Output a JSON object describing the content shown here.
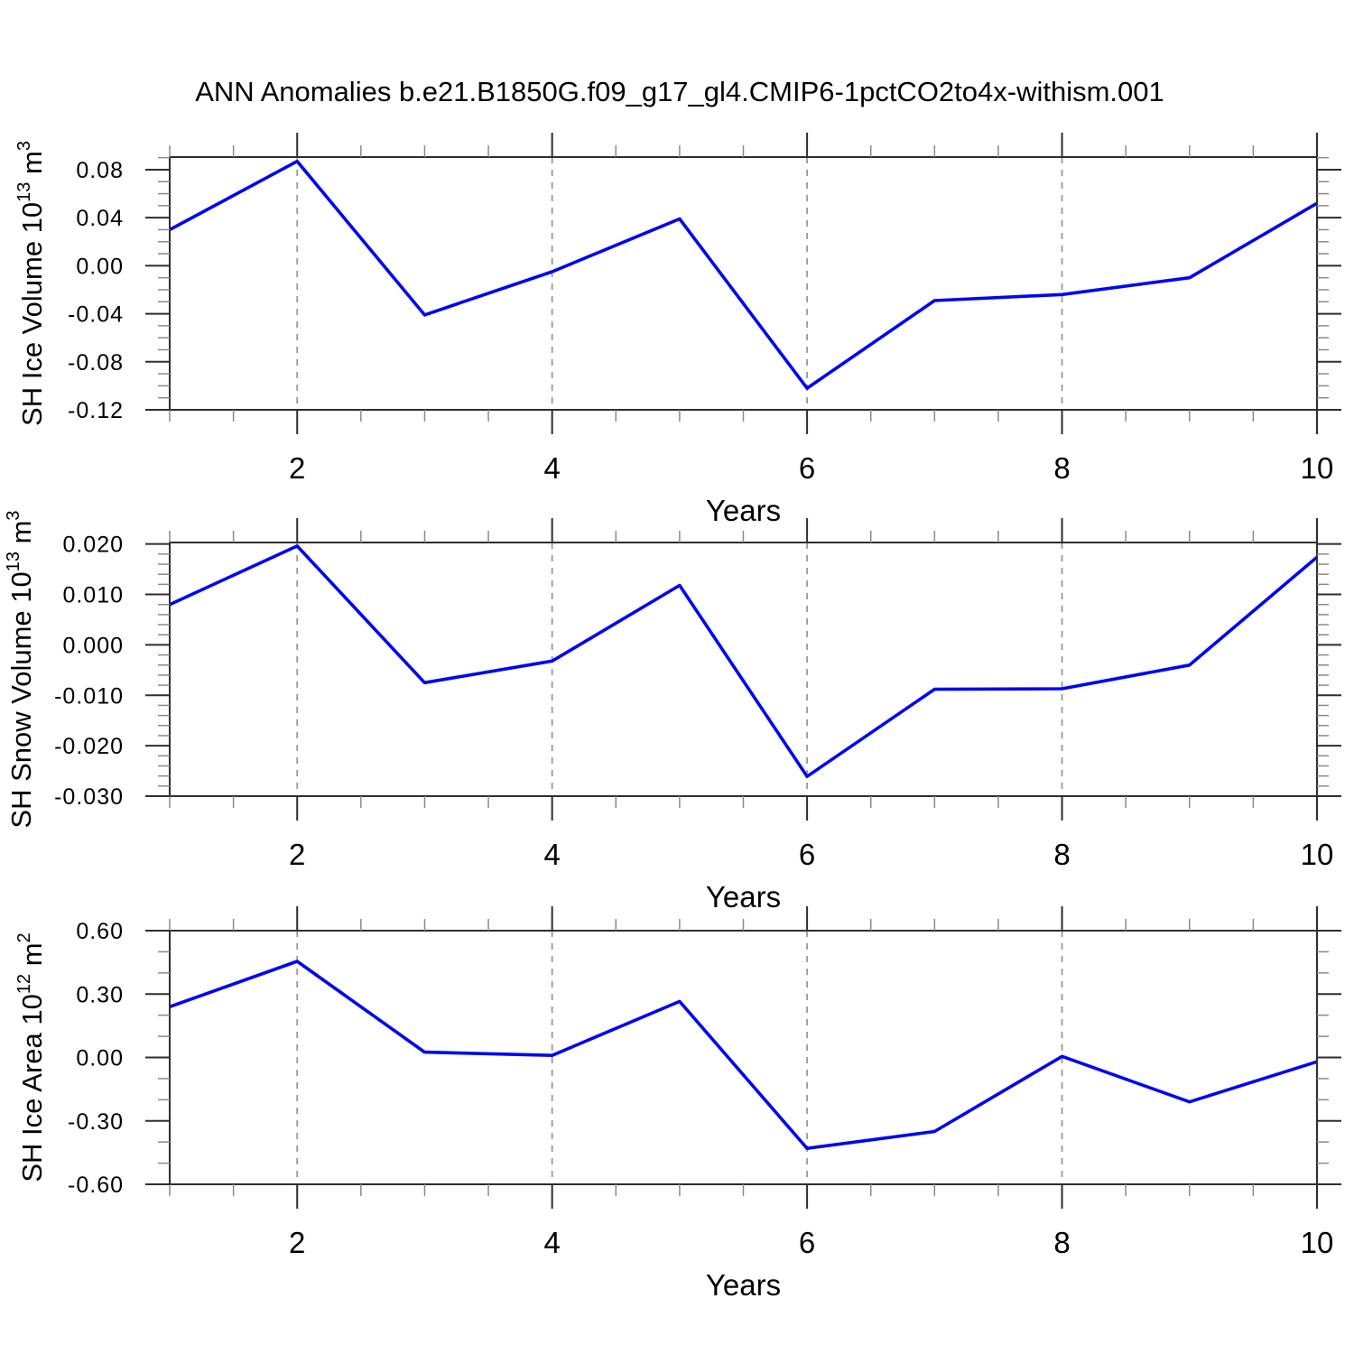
{
  "header": {
    "title": "ANN Anomalies b.e21.B1850G.f09_g17_gl4.CMIP6-1pctCO2to4x-withism.001"
  },
  "style": {
    "background": "#ffffff",
    "line_color": "#0006f0",
    "frame_color": "#2e2e2e",
    "major_tick_color": "#2e2e2e",
    "minor_tick_color": "#8a8a8a",
    "grid_color": "#999999",
    "text_color": "#000000"
  },
  "chart_data": [
    {
      "type": "line",
      "title": "",
      "ylabel": "SH Ice Volume 10^13 m^3",
      "ylabel_parts": [
        {
          "t": "SH Ice Volume 10"
        },
        {
          "t": "13",
          "sup": true
        },
        {
          "t": " m"
        },
        {
          "t": "3",
          "sup": true
        }
      ],
      "xlabel": "Years",
      "x": [
        1,
        2,
        3,
        4,
        5,
        6,
        7,
        8,
        9,
        10
      ],
      "values": [
        0.03,
        0.087,
        -0.041,
        -0.005,
        0.039,
        -0.102,
        -0.029,
        -0.024,
        -0.01,
        0.052
      ],
      "xlim": [
        1,
        10
      ],
      "ylim": [
        -0.12,
        0.0905
      ],
      "yticks": [
        {
          "v": 0.08,
          "label": "0.08"
        },
        {
          "v": 0.04,
          "label": "0.04"
        },
        {
          "v": 0.0,
          "label": "0.00"
        },
        {
          "v": -0.04,
          "label": "-0.04"
        },
        {
          "v": -0.08,
          "label": "-0.08"
        },
        {
          "v": -0.12,
          "label": "-0.12"
        }
      ],
      "y_minor_step": 0.01,
      "xticks": [
        {
          "v": 2,
          "label": "2"
        },
        {
          "v": 4,
          "label": "4"
        },
        {
          "v": 6,
          "label": "6"
        },
        {
          "v": 8,
          "label": "8"
        },
        {
          "v": 10,
          "label": "10"
        }
      ],
      "x_minor_step": 0.5,
      "gridlines_x": [
        2,
        4,
        6,
        8
      ],
      "grid": "vertical-dashed",
      "legend": "none"
    },
    {
      "type": "line",
      "title": "",
      "ylabel": "SH Snow Volume 10^13 m^3",
      "ylabel_parts": [
        {
          "t": "SH Snow Volume 10"
        },
        {
          "t": "13",
          "sup": true
        },
        {
          "t": " m"
        },
        {
          "t": "3",
          "sup": true
        }
      ],
      "xlabel": "Years",
      "x": [
        1,
        2,
        3,
        4,
        5,
        6,
        7,
        8,
        9,
        10
      ],
      "values": [
        0.008,
        0.0196,
        -0.0075,
        -0.0032,
        0.0118,
        -0.0261,
        -0.0088,
        -0.0087,
        -0.004,
        0.0174
      ],
      "xlim": [
        1,
        10
      ],
      "ylim": [
        -0.03,
        0.0203
      ],
      "yticks": [
        {
          "v": 0.02,
          "label": "0.020"
        },
        {
          "v": 0.01,
          "label": "0.010"
        },
        {
          "v": 0.0,
          "label": "0.000"
        },
        {
          "v": -0.01,
          "label": "-0.010"
        },
        {
          "v": -0.02,
          "label": "-0.020"
        },
        {
          "v": -0.03,
          "label": "-0.030"
        }
      ],
      "y_minor_step": 0.002,
      "xticks": [
        {
          "v": 2,
          "label": "2"
        },
        {
          "v": 4,
          "label": "4"
        },
        {
          "v": 6,
          "label": "6"
        },
        {
          "v": 8,
          "label": "8"
        },
        {
          "v": 10,
          "label": "10"
        }
      ],
      "x_minor_step": 0.5,
      "gridlines_x": [
        2,
        4,
        6,
        8
      ],
      "grid": "vertical-dashed",
      "legend": "none"
    },
    {
      "type": "line",
      "title": "",
      "ylabel": "SH Ice Area 10^12 m^2",
      "ylabel_parts": [
        {
          "t": "SH Ice Area 10"
        },
        {
          "t": "12",
          "sup": true
        },
        {
          "t": " m"
        },
        {
          "t": "2",
          "sup": true
        }
      ],
      "xlabel": "Years",
      "x": [
        1,
        2,
        3,
        4,
        5,
        6,
        7,
        8,
        9,
        10
      ],
      "values": [
        0.24,
        0.455,
        0.025,
        0.01,
        0.265,
        -0.43,
        -0.35,
        0.005,
        -0.21,
        -0.02
      ],
      "xlim": [
        1,
        10
      ],
      "ylim": [
        -0.6,
        0.6
      ],
      "yticks": [
        {
          "v": 0.6,
          "label": "0.60"
        },
        {
          "v": 0.3,
          "label": "0.30"
        },
        {
          "v": 0.0,
          "label": "0.00"
        },
        {
          "v": -0.3,
          "label": "-0.30"
        },
        {
          "v": -0.6,
          "label": "-0.60"
        }
      ],
      "y_minor_step": 0.1,
      "xticks": [
        {
          "v": 2,
          "label": "2"
        },
        {
          "v": 4,
          "label": "4"
        },
        {
          "v": 6,
          "label": "6"
        },
        {
          "v": 8,
          "label": "8"
        },
        {
          "v": 10,
          "label": "10"
        }
      ],
      "x_minor_step": 0.5,
      "gridlines_x": [
        2,
        4,
        6,
        8
      ],
      "grid": "vertical-dashed",
      "legend": "none"
    }
  ]
}
